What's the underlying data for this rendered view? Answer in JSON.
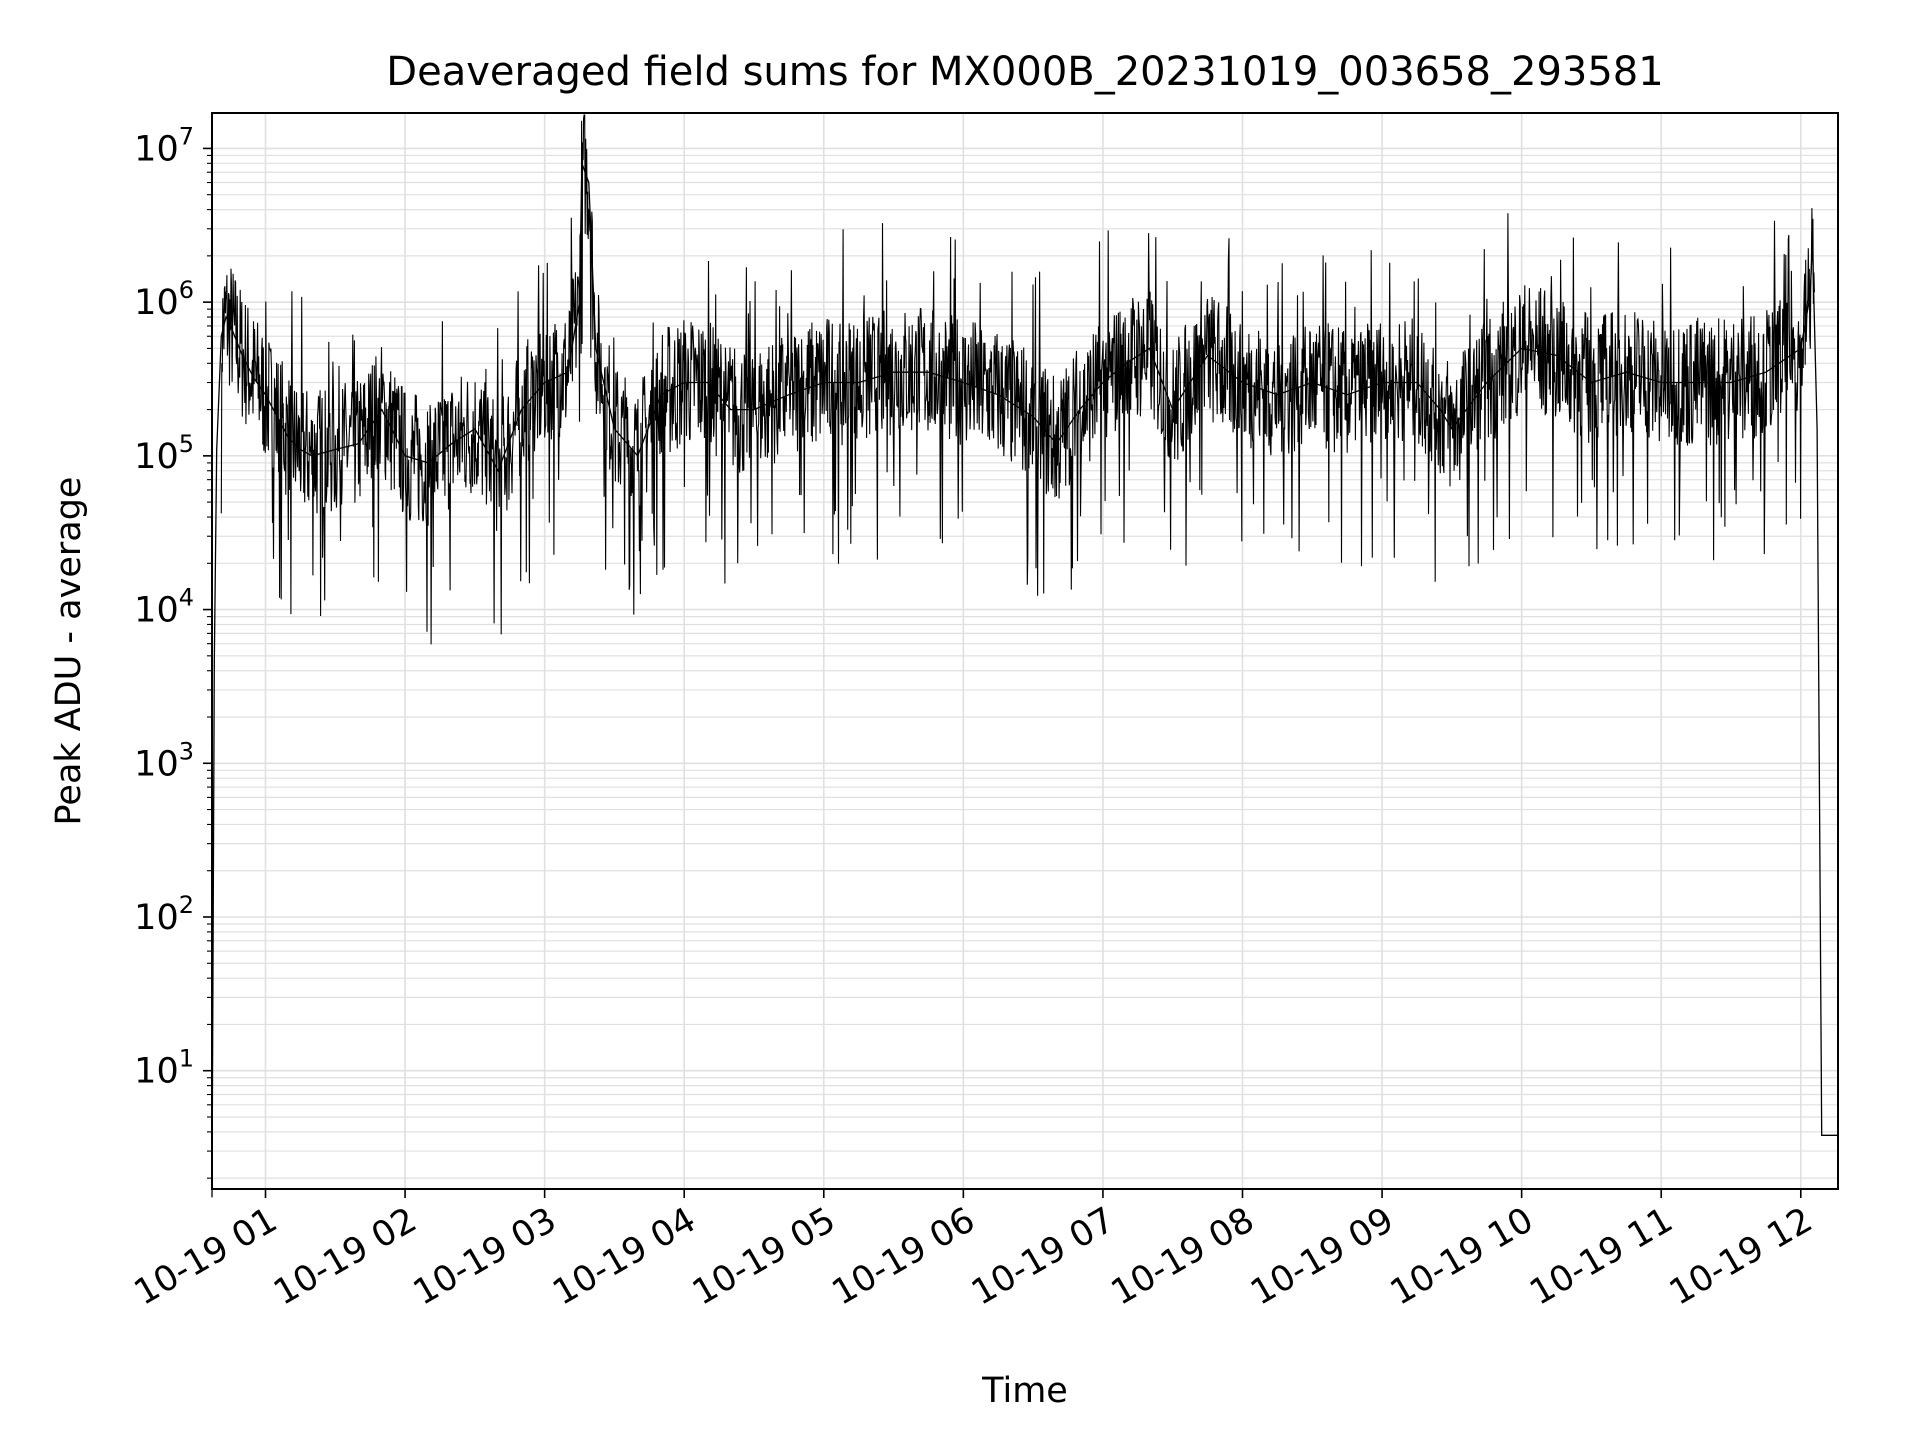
{
  "chart_data": {
    "type": "line",
    "title": "Deaveraged field sums for MX000B_20231019_003658_293581",
    "xlabel": "Time",
    "ylabel": "Peak ADU - average",
    "yscale": "log",
    "xlim": [
      "2023-10-19 00:37",
      "2023-10-19 12:16"
    ],
    "ylim": [
      1.7,
      17000000
    ],
    "grid": {
      "major": true,
      "minor_y": true
    },
    "x_ticks": [
      "10-19 01",
      "10-19 02",
      "10-19 03",
      "10-19 04",
      "10-19 05",
      "10-19 06",
      "10-19 07",
      "10-19 08",
      "10-19 09",
      "10-19 10",
      "10-19 11",
      "10-19 12"
    ],
    "y_ticks": [
      {
        "base": "10",
        "exp": "1",
        "value": 10
      },
      {
        "base": "10",
        "exp": "2",
        "value": 100
      },
      {
        "base": "10",
        "exp": "3",
        "value": 1000
      },
      {
        "base": "10",
        "exp": "4",
        "value": 10000
      },
      {
        "base": "10",
        "exp": "5",
        "value": 100000
      },
      {
        "base": "10",
        "exp": "6",
        "value": 1000000
      },
      {
        "base": "10",
        "exp": "7",
        "value": 10000000
      }
    ],
    "series": [
      {
        "color": "#000000",
        "points": [
          [
            "2023-10-19 00:37",
            1.5
          ],
          [
            "2023-10-19 00:38",
            4500
          ],
          [
            "2023-10-19 00:39",
            110000
          ],
          [
            "2023-10-19 00:41",
            600000
          ],
          [
            "2023-10-19 00:43",
            800000
          ],
          [
            "2023-10-19 00:45",
            700000
          ],
          [
            "2023-10-19 00:50",
            450000
          ],
          [
            "2023-10-19 00:55",
            320000
          ],
          [
            "2023-10-19 01:00",
            250000
          ],
          [
            "2023-10-19 01:05",
            180000
          ],
          [
            "2023-10-19 01:10",
            130000
          ],
          [
            "2023-10-19 01:15",
            110000
          ],
          [
            "2023-10-19 01:20",
            100000
          ],
          [
            "2023-10-19 01:30",
            110000
          ],
          [
            "2023-10-19 01:40",
            120000
          ],
          [
            "2023-10-19 01:50",
            200000
          ],
          [
            "2023-10-19 02:00",
            100000
          ],
          [
            "2023-10-19 02:10",
            90000
          ],
          [
            "2023-10-19 02:20",
            120000
          ],
          [
            "2023-10-19 02:30",
            150000
          ],
          [
            "2023-10-19 02:40",
            80000
          ],
          [
            "2023-10-19 02:50",
            200000
          ],
          [
            "2023-10-19 03:00",
            300000
          ],
          [
            "2023-10-19 03:10",
            350000
          ],
          [
            "2023-10-19 03:15",
            1000000
          ],
          [
            "2023-10-19 03:16",
            8000000
          ],
          [
            "2023-10-19 03:19",
            6000000
          ],
          [
            "2023-10-19 03:22",
            500000
          ],
          [
            "2023-10-19 03:30",
            150000
          ],
          [
            "2023-10-19 03:40",
            100000
          ],
          [
            "2023-10-19 03:50",
            250000
          ],
          [
            "2023-10-19 04:00",
            300000
          ],
          [
            "2023-10-19 04:10",
            300000
          ],
          [
            "2023-10-19 04:20",
            200000
          ],
          [
            "2023-10-19 04:30",
            200000
          ],
          [
            "2023-10-19 04:45",
            250000
          ],
          [
            "2023-10-19 05:00",
            300000
          ],
          [
            "2023-10-19 05:15",
            300000
          ],
          [
            "2023-10-19 05:30",
            350000
          ],
          [
            "2023-10-19 05:45",
            350000
          ],
          [
            "2023-10-19 06:00",
            300000
          ],
          [
            "2023-10-19 06:15",
            250000
          ],
          [
            "2023-10-19 06:30",
            180000
          ],
          [
            "2023-10-19 06:40",
            120000
          ],
          [
            "2023-10-19 06:50",
            200000
          ],
          [
            "2023-10-19 07:00",
            300000
          ],
          [
            "2023-10-19 07:10",
            400000
          ],
          [
            "2023-10-19 07:20",
            500000
          ],
          [
            "2023-10-19 07:30",
            200000
          ],
          [
            "2023-10-19 07:45",
            450000
          ],
          [
            "2023-10-19 08:00",
            300000
          ],
          [
            "2023-10-19 08:15",
            250000
          ],
          [
            "2023-10-19 08:30",
            300000
          ],
          [
            "2023-10-19 08:45",
            250000
          ],
          [
            "2023-10-19 09:00",
            300000
          ],
          [
            "2023-10-19 09:15",
            300000
          ],
          [
            "2023-10-19 09:25",
            200000
          ],
          [
            "2023-10-19 09:30",
            150000
          ],
          [
            "2023-10-19 09:45",
            300000
          ],
          [
            "2023-10-19 10:00",
            500000
          ],
          [
            "2023-10-19 10:15",
            450000
          ],
          [
            "2023-10-19 10:30",
            300000
          ],
          [
            "2023-10-19 10:45",
            350000
          ],
          [
            "2023-10-19 11:00",
            300000
          ],
          [
            "2023-10-19 11:15",
            300000
          ],
          [
            "2023-10-19 11:30",
            300000
          ],
          [
            "2023-10-19 11:45",
            350000
          ],
          [
            "2023-10-19 12:00",
            500000
          ],
          [
            "2023-10-19 12:04",
            1100000
          ],
          [
            "2023-10-19 12:05",
            2500000
          ],
          [
            "2023-10-19 12:07",
            150000
          ],
          [
            "2023-10-19 12:09",
            3.8
          ],
          [
            "2023-10-19 12:16",
            3.8
          ]
        ]
      }
    ]
  }
}
